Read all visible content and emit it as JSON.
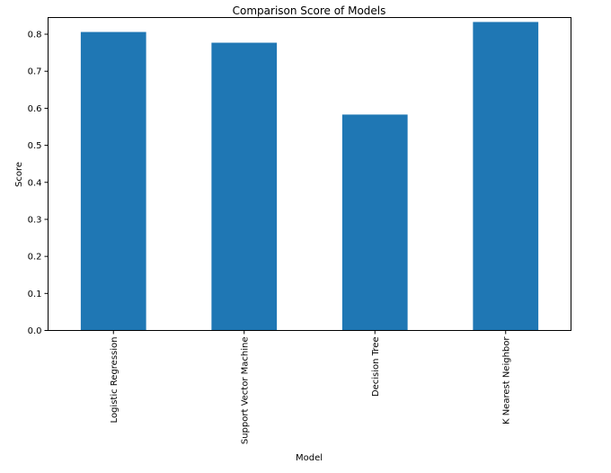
{
  "chart_data": {
    "type": "bar",
    "title": "Comparison Score of Models",
    "xlabel": "Model",
    "ylabel": "Score",
    "categories": [
      "Logistic Regression",
      "Support Vector Machine",
      "Decision Tree",
      "K Nearest Neighbor"
    ],
    "values": [
      0.806,
      0.777,
      0.583,
      0.833
    ],
    "ylim": [
      0,
      0.845
    ],
    "yticks": [
      "0.0",
      "0.1",
      "0.2",
      "0.3",
      "0.4",
      "0.5",
      "0.6",
      "0.7",
      "0.8"
    ],
    "bar_color": "#1f77b4",
    "grid": false,
    "legend": "none"
  }
}
